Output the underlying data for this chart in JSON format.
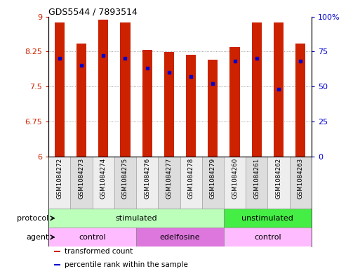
{
  "title": "GDS5544 / 7893514",
  "samples": [
    "GSM1084272",
    "GSM1084273",
    "GSM1084274",
    "GSM1084275",
    "GSM1084276",
    "GSM1084277",
    "GSM1084278",
    "GSM1084279",
    "GSM1084260",
    "GSM1084261",
    "GSM1084262",
    "GSM1084263"
  ],
  "transformed_counts": [
    8.88,
    8.42,
    8.93,
    8.88,
    8.28,
    8.24,
    8.18,
    8.08,
    8.35,
    8.88,
    8.88,
    8.42
  ],
  "percentile_ranks": [
    70,
    65,
    72,
    70,
    63,
    60,
    57,
    52,
    68,
    70,
    48,
    68
  ],
  "y_min": 6,
  "y_max": 9,
  "y_ticks": [
    6,
    6.75,
    7.5,
    8.25,
    9
  ],
  "y_tick_labels": [
    "6",
    "6.75",
    "7.5",
    "8.25",
    "9"
  ],
  "y2_ticks": [
    0,
    25,
    50,
    75,
    100
  ],
  "y2_tick_labels": [
    "0",
    "25",
    "50",
    "75",
    "100%"
  ],
  "bar_color": "#cc2200",
  "dot_color": "#0000cc",
  "background_color": "#ffffff",
  "grid_color": "#888888",
  "protocol_groups": [
    {
      "label": "stimulated",
      "start": 0,
      "end": 8,
      "color": "#bbffbb"
    },
    {
      "label": "unstimulated",
      "start": 8,
      "end": 12,
      "color": "#44ee44"
    }
  ],
  "agent_groups": [
    {
      "label": "control",
      "start": 0,
      "end": 4,
      "color": "#ffbbff"
    },
    {
      "label": "edelfosine",
      "start": 4,
      "end": 8,
      "color": "#dd77dd"
    },
    {
      "label": "control",
      "start": 8,
      "end": 12,
      "color": "#ffbbff"
    }
  ],
  "legend_items": [
    {
      "label": "transformed count",
      "color": "#cc2200",
      "marker": "s"
    },
    {
      "label": "percentile rank within the sample",
      "color": "#0000cc",
      "marker": "s"
    }
  ],
  "protocol_label": "protocol",
  "agent_label": "agent",
  "xticklabel_bg_odd": "#dddddd",
  "xticklabel_bg_even": "#eeeeee"
}
